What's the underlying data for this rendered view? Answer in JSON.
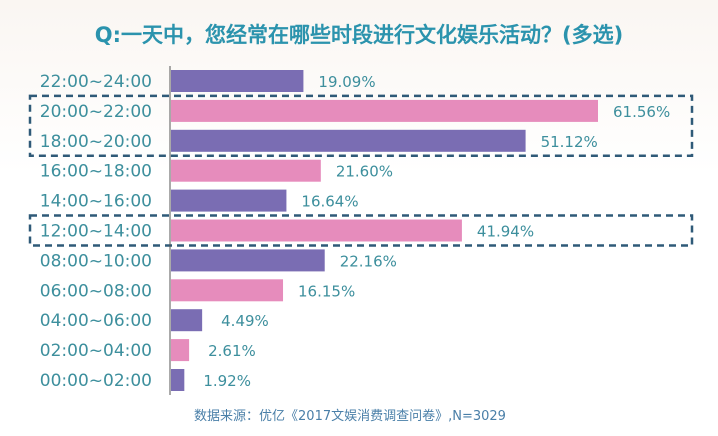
{
  "chart_data": {
    "type": "bar",
    "orientation": "horizontal",
    "title": "Q:一天中，您经常在哪些时段进行文化娱乐活动？(多选)",
    "source": "数据来源：优亿《2017文娱消费调查问卷》,N=3029",
    "categories": [
      "22:00~24:00",
      "20:00~22:00",
      "18:00~20:00",
      "16:00~18:00",
      "14:00~16:00",
      "12:00~14:00",
      "08:00~10:00",
      "06:00~08:00",
      "04:00~06:00",
      "02:00~04:00",
      "00:00~02:00"
    ],
    "values": [
      19.09,
      61.56,
      51.12,
      21.6,
      16.64,
      41.94,
      22.16,
      16.15,
      4.49,
      2.61,
      1.92
    ],
    "value_labels": [
      "19.09%",
      "61.56%",
      "51.12%",
      "21.60%",
      "16.64%",
      "41.94%",
      "22.16%",
      "16.15%",
      "4.49%",
      "2.61%",
      "1.92%"
    ],
    "xlim": [
      0,
      65
    ],
    "grid": false,
    "highlighted_groups": [
      [
        "20:00~22:00",
        "18:00~20:00"
      ],
      [
        "12:00~14:00"
      ]
    ],
    "colors": {
      "purple": "#7a6db3",
      "pink": "#e68cbc",
      "text": "#3d8f9d",
      "title": "#2b93ad",
      "highlight": "#2f5a78"
    },
    "bar_colors": [
      "purple",
      "pink",
      "purple",
      "pink",
      "purple",
      "pink",
      "purple",
      "pink",
      "purple",
      "pink",
      "purple"
    ]
  }
}
